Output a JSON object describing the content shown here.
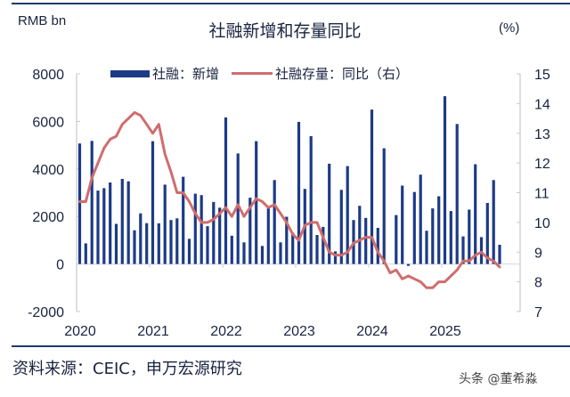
{
  "header": {
    "title": "社融新增和存量同比",
    "left_unit": "RMB bn",
    "right_unit": "(%)"
  },
  "legend": {
    "bar_label": "社融：新增",
    "line_label": "社融存量：同比（右）"
  },
  "footer": {
    "source": "资料来源：CEIC，申万宏源研究",
    "watermark": "头条 @董希淼"
  },
  "colors": {
    "bar": "#1c3a86",
    "line": "#d06d6d",
    "axis": "#c8c8c8",
    "rule": "#1f3a6e"
  },
  "chart_data": {
    "type": "bar+line",
    "title": "社融新增和存量同比",
    "xlabel": "",
    "ylabel_left": "RMB bn",
    "ylabel_right": "(%)",
    "ylim_left": [
      -2000,
      8000
    ],
    "yticks_left": [
      -2000,
      0,
      2000,
      4000,
      6000,
      8000
    ],
    "ylim_right": [
      7,
      15
    ],
    "yticks_right": [
      7,
      8,
      9,
      10,
      11,
      12,
      13,
      14,
      15
    ],
    "xticks": [
      "2020",
      "2021",
      "2022",
      "2023",
      "2024",
      "2025"
    ],
    "grid": false,
    "legend_position": "top",
    "x_start": "2020-01",
    "x_end": "2025-10",
    "series": [
      {
        "name": "社融：新增",
        "type": "bar",
        "axis": "left",
        "values": [
          5070,
          870,
          5180,
          3090,
          3190,
          3430,
          1690,
          3580,
          3480,
          1420,
          2130,
          1720,
          5170,
          1710,
          3340,
          1850,
          1920,
          3670,
          1060,
          2960,
          2900,
          1590,
          2610,
          2370,
          6170,
          1190,
          4650,
          910,
          2790,
          5170,
          760,
          2430,
          3530,
          910,
          1990,
          1310,
          5980,
          3160,
          5380,
          1220,
          1560,
          4220,
          530,
          3120,
          4120,
          1850,
          2450,
          1940,
          6500,
          1520,
          4870,
          0,
          2060,
          3300,
          -80,
          3030,
          3760,
          1400,
          2340,
          2850,
          7060,
          2230,
          5890,
          1160,
          2290,
          4200,
          1130,
          2570,
          3530,
          810
        ]
      },
      {
        "name": "社融存量：同比（右）",
        "type": "line",
        "axis": "right",
        "values": [
          10.7,
          10.7,
          11.5,
          12.0,
          12.5,
          12.8,
          12.9,
          13.3,
          13.5,
          13.7,
          13.6,
          13.3,
          13.0,
          13.3,
          12.3,
          11.7,
          11.0,
          11.0,
          10.7,
          10.3,
          10.0,
          10.0,
          10.1,
          10.3,
          10.5,
          10.2,
          10.6,
          10.2,
          10.5,
          10.8,
          10.7,
          10.5,
          10.6,
          10.3,
          10.0,
          9.6,
          9.4,
          9.9,
          10.0,
          10.0,
          9.5,
          9.0,
          8.9,
          8.9,
          9.0,
          9.3,
          9.4,
          9.5,
          9.5,
          9.0,
          8.7,
          8.3,
          8.4,
          8.1,
          8.2,
          8.1,
          8.0,
          7.8,
          7.8,
          8.0,
          8.0,
          8.2,
          8.4,
          8.7,
          8.7,
          8.9,
          9.0,
          8.8,
          8.7,
          8.5
        ]
      }
    ]
  }
}
